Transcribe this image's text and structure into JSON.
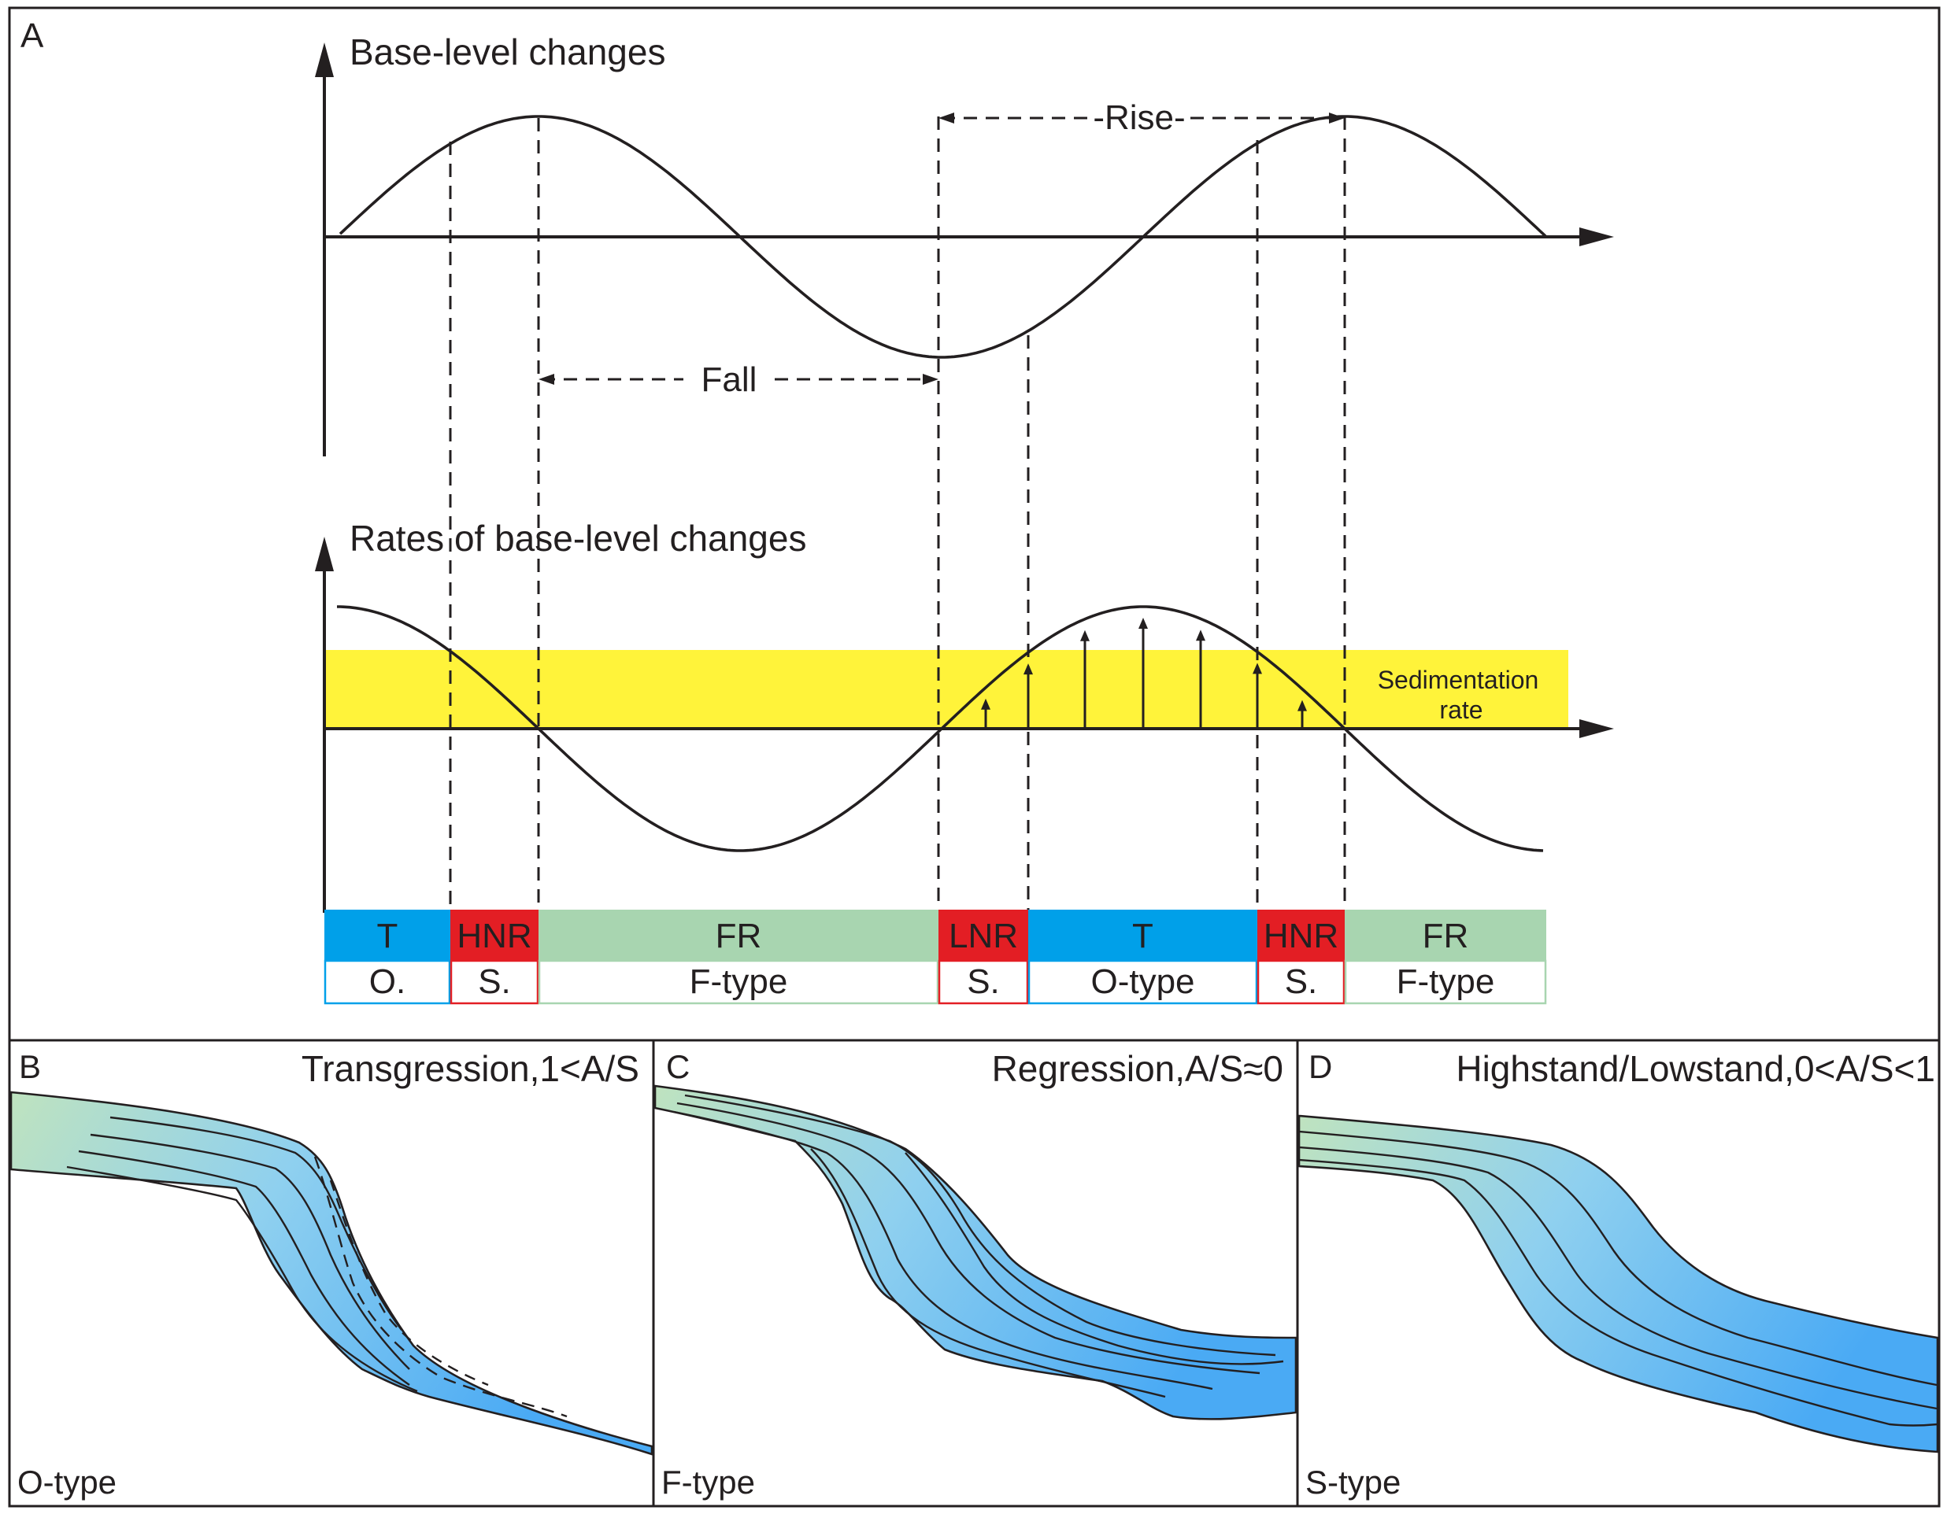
{
  "panel_a": {
    "letter": "A",
    "top_title": "Base-level changes",
    "bottom_title": "Rates of base-level changes",
    "rise_label": "-Rise-",
    "fall_label": "Fall",
    "sedimentation_label_1": "Sedimentation",
    "sedimentation_label_2": "rate",
    "bar_top": [
      {
        "label": "T",
        "color": "#00a0e9"
      },
      {
        "label": "HNR",
        "color": "#e31e24"
      },
      {
        "label": "FR",
        "color": "#a8d5b0"
      },
      {
        "label": "LNR",
        "color": "#e31e24"
      },
      {
        "label": "T",
        "color": "#00a0e9"
      },
      {
        "label": "HNR",
        "color": "#e31e24"
      },
      {
        "label": "FR",
        "color": "#a8d5b0"
      }
    ],
    "bar_bottom": [
      {
        "label": "O.",
        "border": "#00a0e9"
      },
      {
        "label": "S.",
        "border": "#e31e24"
      },
      {
        "label": "F-type",
        "border": "#a8d5b0"
      },
      {
        "label": "S.",
        "border": "#e31e24"
      },
      {
        "label": "O-type",
        "border": "#00a0e9"
      },
      {
        "label": "S.",
        "border": "#e31e24"
      },
      {
        "label": "F-type",
        "border": "#a8d5b0"
      }
    ],
    "colors": {
      "sedimentation_band": "#fff33a",
      "transgression": "#00a0e9",
      "normal_regression": "#e31e24",
      "forced_regression": "#a8d5b0"
    }
  },
  "panel_b": {
    "letter": "B",
    "title": "Transgression,1<A/S",
    "type_label": "O-type"
  },
  "panel_c": {
    "letter": "C",
    "title": "Regression,A/S≈0",
    "type_label": "F-type"
  },
  "panel_d": {
    "letter": "D",
    "title": "Highstand/Lowstand,0<A/S<1",
    "type_label": "S-type"
  },
  "body_gradient": {
    "start": "#bfe3bf",
    "mid": "#8fd0ef",
    "end": "#4aaaf4"
  }
}
